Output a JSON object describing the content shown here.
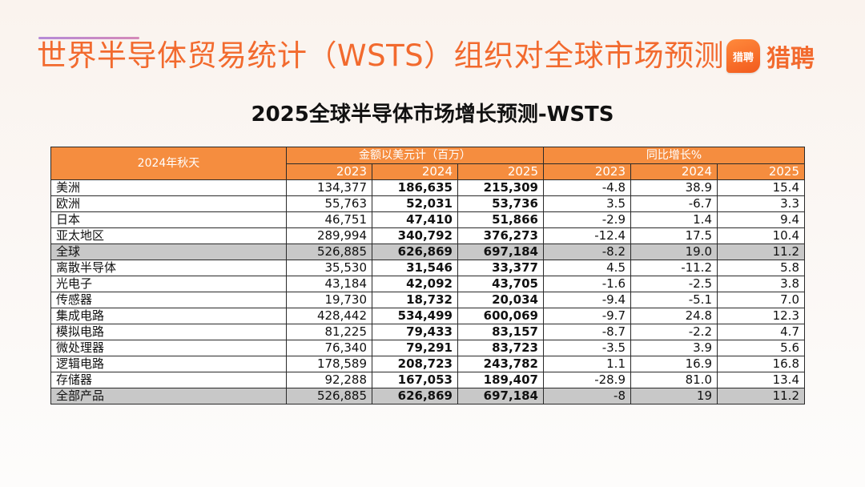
{
  "slide_title": "世界半导体贸易统计（WSTS）组织对全球市场预测",
  "logo": {
    "badge": "猎聘",
    "text": "猎聘"
  },
  "table_title": "2025全球半导体市场增长预测-WSTS",
  "table": {
    "corner_label": "2024年秋天",
    "group_amount": "金额以美元计（百万）",
    "group_growth": "同比增长%",
    "years": [
      "2023",
      "2024",
      "2025"
    ],
    "rows": [
      {
        "label": "美洲",
        "amounts": [
          "134,377",
          "186,635",
          "215,309"
        ],
        "growth": [
          "-4.8",
          "38.9",
          "15.4"
        ],
        "total": false
      },
      {
        "label": "欧洲",
        "amounts": [
          "55,763",
          "52,031",
          "53,736"
        ],
        "growth": [
          "3.5",
          "-6.7",
          "3.3"
        ],
        "total": false
      },
      {
        "label": "日本",
        "amounts": [
          "46,751",
          "47,410",
          "51,866"
        ],
        "growth": [
          "-2.9",
          "1.4",
          "9.4"
        ],
        "total": false
      },
      {
        "label": "亚太地区",
        "amounts": [
          "289,994",
          "340,792",
          "376,273"
        ],
        "growth": [
          "-12.4",
          "17.5",
          "10.4"
        ],
        "total": false
      },
      {
        "label": "全球",
        "amounts": [
          "526,885",
          "626,869",
          "697,184"
        ],
        "growth": [
          "-8.2",
          "19.0",
          "11.2"
        ],
        "total": true
      },
      {
        "label": "离散半导体",
        "amounts": [
          "35,530",
          "31,546",
          "33,377"
        ],
        "growth": [
          "4.5",
          "-11.2",
          "5.8"
        ],
        "total": false
      },
      {
        "label": "光电子",
        "amounts": [
          "43,184",
          "42,092",
          "43,705"
        ],
        "growth": [
          "-1.6",
          "-2.5",
          "3.8"
        ],
        "total": false
      },
      {
        "label": "传感器",
        "amounts": [
          "19,730",
          "18,732",
          "20,034"
        ],
        "growth": [
          "-9.4",
          "-5.1",
          "7.0"
        ],
        "total": false
      },
      {
        "label": "集成电路",
        "amounts": [
          "428,442",
          "534,499",
          "600,069"
        ],
        "growth": [
          "-9.7",
          "24.8",
          "12.3"
        ],
        "total": false
      },
      {
        "label": "模拟电路",
        "amounts": [
          "81,225",
          "79,433",
          "83,157"
        ],
        "growth": [
          "-8.7",
          "-2.2",
          "4.7"
        ],
        "total": false
      },
      {
        "label": "微处理器",
        "amounts": [
          "76,340",
          "79,291",
          "83,723"
        ],
        "growth": [
          "-3.5",
          "3.9",
          "5.6"
        ],
        "total": false
      },
      {
        "label": "逻辑电路",
        "amounts": [
          "178,589",
          "208,723",
          "243,782"
        ],
        "growth": [
          "1.1",
          "16.9",
          "16.8"
        ],
        "total": false
      },
      {
        "label": "存储器",
        "amounts": [
          "92,288",
          "167,053",
          "189,407"
        ],
        "growth": [
          "-28.9",
          "81.0",
          "13.4"
        ],
        "total": false
      },
      {
        "label": "全部产品",
        "amounts": [
          "526,885",
          "626,869",
          "697,184"
        ],
        "growth": [
          "-8",
          "19",
          "11.2"
        ],
        "total": true
      }
    ]
  },
  "colors": {
    "accent": "#f26a2e",
    "header_bg": "#f58d3f",
    "total_row_bg": "#c8c8c8"
  }
}
